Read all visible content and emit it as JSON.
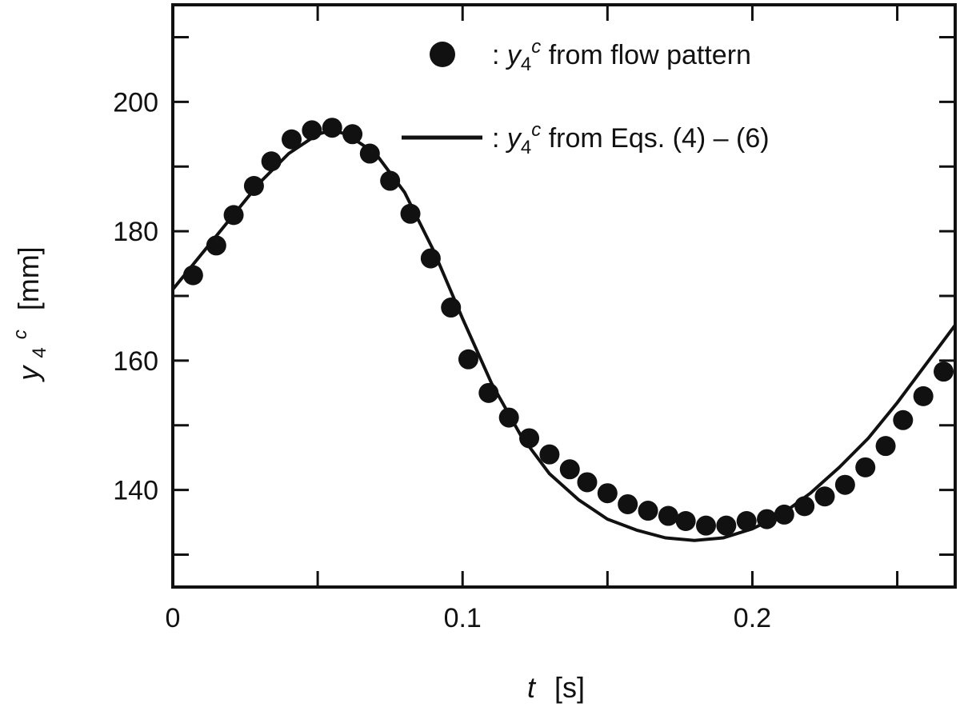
{
  "chart_data": {
    "type": "scatter",
    "title": "",
    "xlabel": {
      "symbol": "t",
      "unit": "[s]"
    },
    "ylabel": {
      "symbol": "y",
      "subscript": "4",
      "superscript": "c",
      "unit": "[mm]"
    },
    "xlim": [
      0,
      0.27
    ],
    "ylim": [
      125,
      215
    ],
    "x_ticks": [
      {
        "value": 0,
        "label": "0"
      },
      {
        "value": 0.1,
        "label": "0.1"
      },
      {
        "value": 0.2,
        "label": "0.2"
      }
    ],
    "x_minor_ticks": [
      0.05,
      0.15,
      0.25
    ],
    "y_ticks": [
      {
        "value": 140,
        "label": "140"
      },
      {
        "value": 160,
        "label": "160"
      },
      {
        "value": 180,
        "label": "180"
      },
      {
        "value": 200,
        "label": "200"
      }
    ],
    "y_minor_ticks": [
      130,
      150,
      170,
      190,
      210
    ],
    "grid": false,
    "legend_position": "top-right",
    "series": [
      {
        "name": "y4c from flow pattern",
        "legend": {
          "sep": ": ",
          "sym": "y",
          "sub": "4",
          "sup": "c",
          "text": " from flow pattern"
        },
        "marker": "circle",
        "color": "#111111",
        "points": [
          [
            0.007,
            173.2
          ],
          [
            0.015,
            177.8
          ],
          [
            0.021,
            182.5
          ],
          [
            0.028,
            187.0
          ],
          [
            0.034,
            190.8
          ],
          [
            0.041,
            194.2
          ],
          [
            0.048,
            195.6
          ],
          [
            0.055,
            196.0
          ],
          [
            0.062,
            195.0
          ],
          [
            0.068,
            192.0
          ],
          [
            0.075,
            187.8
          ],
          [
            0.082,
            182.7
          ],
          [
            0.089,
            175.8
          ],
          [
            0.096,
            168.2
          ],
          [
            0.102,
            160.2
          ],
          [
            0.109,
            155.0
          ],
          [
            0.116,
            151.2
          ],
          [
            0.123,
            148.0
          ],
          [
            0.13,
            145.5
          ],
          [
            0.137,
            143.2
          ],
          [
            0.143,
            141.2
          ],
          [
            0.15,
            139.5
          ],
          [
            0.157,
            137.8
          ],
          [
            0.164,
            136.8
          ],
          [
            0.171,
            136.0
          ],
          [
            0.177,
            135.2
          ],
          [
            0.184,
            134.5
          ],
          [
            0.191,
            134.5
          ],
          [
            0.198,
            135.2
          ],
          [
            0.205,
            135.5
          ],
          [
            0.211,
            136.2
          ],
          [
            0.218,
            137.5
          ],
          [
            0.225,
            139.0
          ],
          [
            0.232,
            140.8
          ],
          [
            0.239,
            143.5
          ],
          [
            0.246,
            146.8
          ],
          [
            0.252,
            150.8
          ],
          [
            0.259,
            154.5
          ],
          [
            0.266,
            158.3
          ]
        ]
      },
      {
        "name": "y4c from Eqs. (4) – (6)",
        "legend": {
          "sep": ": ",
          "sym": "y",
          "sub": "4",
          "sup": "c",
          "text": " from Eqs. (4) – (6)"
        },
        "marker": "line",
        "color": "#111111",
        "points": [
          [
            0.0,
            171.0
          ],
          [
            0.01,
            176.5
          ],
          [
            0.02,
            182.0
          ],
          [
            0.03,
            187.5
          ],
          [
            0.04,
            192.0
          ],
          [
            0.05,
            195.0
          ],
          [
            0.055,
            195.6
          ],
          [
            0.06,
            195.0
          ],
          [
            0.07,
            192.0
          ],
          [
            0.08,
            186.0
          ],
          [
            0.09,
            177.0
          ],
          [
            0.1,
            166.5
          ],
          [
            0.11,
            156.5
          ],
          [
            0.12,
            148.5
          ],
          [
            0.13,
            142.5
          ],
          [
            0.14,
            138.5
          ],
          [
            0.15,
            135.5
          ],
          [
            0.16,
            133.8
          ],
          [
            0.17,
            132.6
          ],
          [
            0.18,
            132.2
          ],
          [
            0.19,
            132.6
          ],
          [
            0.2,
            134.0
          ],
          [
            0.21,
            136.2
          ],
          [
            0.22,
            139.5
          ],
          [
            0.23,
            143.5
          ],
          [
            0.24,
            148.0
          ],
          [
            0.25,
            153.5
          ],
          [
            0.26,
            159.5
          ],
          [
            0.27,
            165.5
          ]
        ]
      }
    ]
  }
}
